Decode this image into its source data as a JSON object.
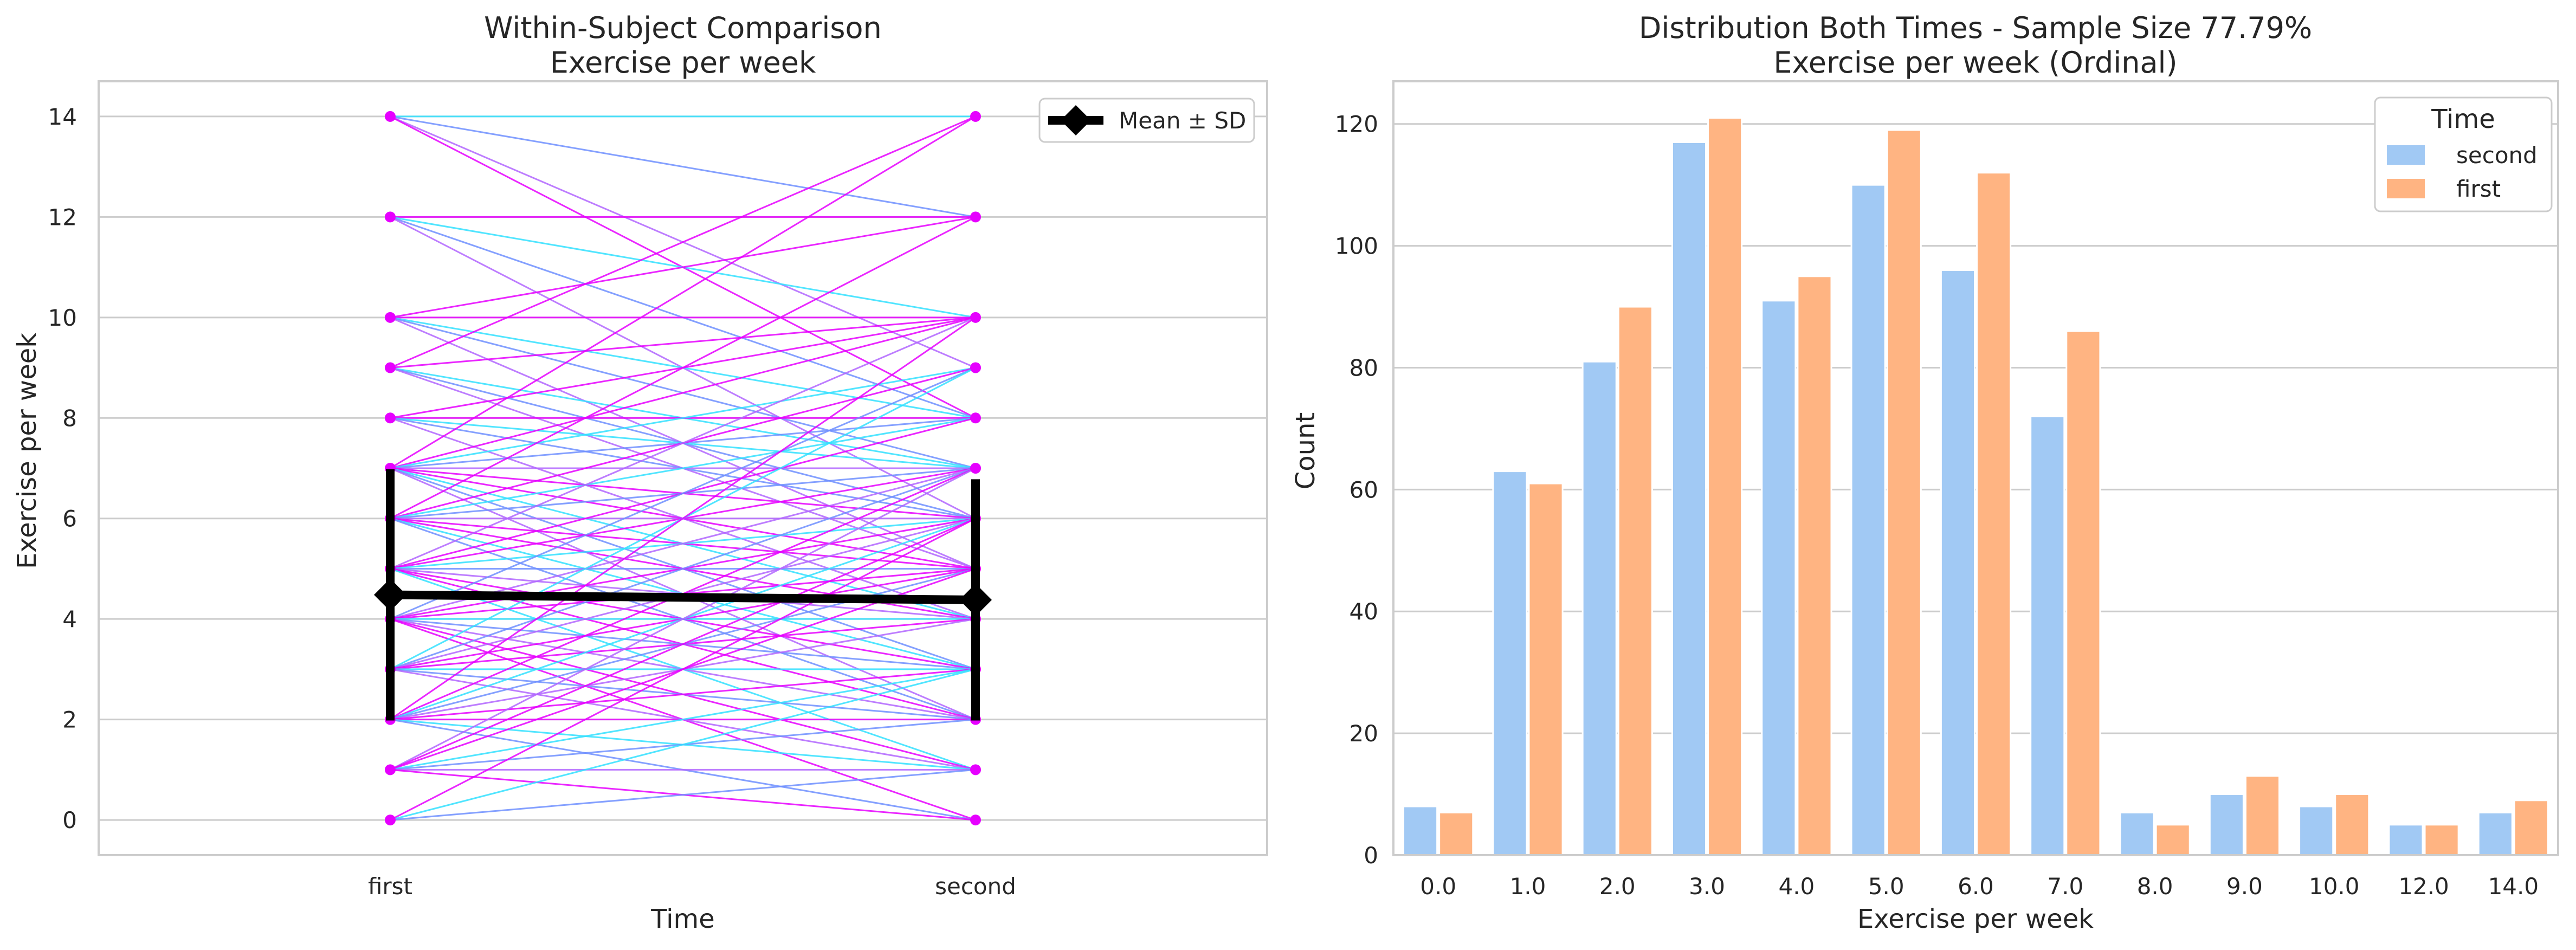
{
  "colors": {
    "grid": "#cccccc",
    "frame": "#cccccc",
    "line_cyan": "#33e0ff",
    "line_blue": "#6f8fff",
    "line_violet": "#b266ff",
    "line_magenta": "#e600ff",
    "point": "#e600ff",
    "mean": "#000000",
    "second": "#a1c9f4",
    "first": "#ffb482"
  },
  "chart_data": [
    {
      "type": "line",
      "title_line1": "Within-Subject Comparison",
      "title_line2": "Exercise per week",
      "xlabel": "Time",
      "ylabel": "Exercise per week",
      "categories": [
        "first",
        "second"
      ],
      "yticks": [
        "0",
        "2",
        "4",
        "6",
        "8",
        "10",
        "12",
        "14"
      ],
      "ylim": [
        -0.7,
        14.7
      ],
      "grid": true,
      "legend_label": "Mean ± SD",
      "legend_position": "top-right",
      "mean": [
        4.48,
        4.38
      ],
      "sd": [
        2.5,
        2.4
      ],
      "pairs": [
        [
          14,
          14
        ],
        [
          14,
          12
        ],
        [
          14,
          9
        ],
        [
          14,
          8
        ],
        [
          12,
          12
        ],
        [
          12,
          10
        ],
        [
          12,
          8
        ],
        [
          12,
          6
        ],
        [
          10,
          12
        ],
        [
          10,
          10
        ],
        [
          10,
          8
        ],
        [
          10,
          7
        ],
        [
          10,
          5
        ],
        [
          9,
          14
        ],
        [
          9,
          10
        ],
        [
          9,
          7
        ],
        [
          9,
          6
        ],
        [
          9,
          5
        ],
        [
          8,
          10
        ],
        [
          8,
          8
        ],
        [
          8,
          7
        ],
        [
          8,
          6
        ],
        [
          8,
          4
        ],
        [
          7,
          14
        ],
        [
          7,
          10
        ],
        [
          7,
          9
        ],
        [
          7,
          8
        ],
        [
          7,
          7
        ],
        [
          7,
          6
        ],
        [
          7,
          5
        ],
        [
          7,
          4
        ],
        [
          7,
          3
        ],
        [
          7,
          2
        ],
        [
          6,
          12
        ],
        [
          6,
          9
        ],
        [
          6,
          8
        ],
        [
          6,
          7
        ],
        [
          6,
          6
        ],
        [
          6,
          5
        ],
        [
          6,
          4
        ],
        [
          6,
          3
        ],
        [
          6,
          2
        ],
        [
          5,
          10
        ],
        [
          5,
          8
        ],
        [
          5,
          7
        ],
        [
          5,
          6
        ],
        [
          5,
          5
        ],
        [
          5,
          4
        ],
        [
          5,
          3
        ],
        [
          5,
          2
        ],
        [
          5,
          1
        ],
        [
          4,
          9
        ],
        [
          4,
          7
        ],
        [
          4,
          6
        ],
        [
          4,
          5
        ],
        [
          4,
          4
        ],
        [
          4,
          3
        ],
        [
          4,
          2
        ],
        [
          4,
          1
        ],
        [
          4,
          0
        ],
        [
          3,
          9
        ],
        [
          3,
          7
        ],
        [
          3,
          6
        ],
        [
          3,
          5
        ],
        [
          3,
          4
        ],
        [
          3,
          3
        ],
        [
          3,
          2
        ],
        [
          3,
          1
        ],
        [
          2,
          10
        ],
        [
          2,
          7
        ],
        [
          2,
          6
        ],
        [
          2,
          5
        ],
        [
          2,
          4
        ],
        [
          2,
          3
        ],
        [
          2,
          2
        ],
        [
          2,
          1
        ],
        [
          2,
          0
        ],
        [
          1,
          7
        ],
        [
          1,
          6
        ],
        [
          1,
          5
        ],
        [
          1,
          3
        ],
        [
          1,
          2
        ],
        [
          1,
          1
        ],
        [
          1,
          0
        ],
        [
          0,
          6
        ],
        [
          0,
          3
        ],
        [
          0,
          1
        ]
      ]
    },
    {
      "type": "bar",
      "title_line1": "Distribution Both Times - Sample Size 77.79%",
      "title_line2": "Exercise per week (Ordinal)",
      "xlabel": "Exercise per week",
      "ylabel": "Count",
      "categories": [
        "0.0",
        "1.0",
        "2.0",
        "3.0",
        "4.0",
        "5.0",
        "6.0",
        "7.0",
        "8.0",
        "9.0",
        "10.0",
        "12.0",
        "14.0"
      ],
      "yticks": [
        "0",
        "20",
        "40",
        "60",
        "80",
        "100",
        "120"
      ],
      "ylim": [
        0,
        127
      ],
      "grid": true,
      "legend_title": "Time",
      "legend_position": "top-right",
      "series": [
        {
          "name": "second",
          "values": [
            8,
            63,
            81,
            117,
            91,
            110,
            96,
            72,
            7,
            10,
            8,
            5,
            7
          ]
        },
        {
          "name": "first",
          "values": [
            7,
            61,
            90,
            121,
            95,
            119,
            112,
            86,
            5,
            13,
            10,
            5,
            9
          ]
        }
      ]
    }
  ]
}
